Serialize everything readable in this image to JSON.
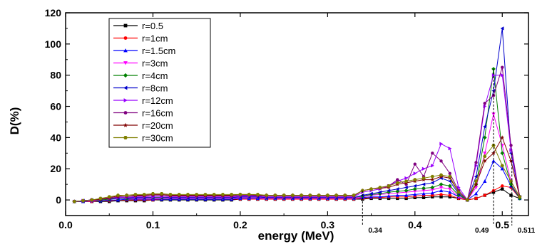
{
  "chart_data": {
    "type": "line",
    "xlabel": "energy (MeV)",
    "ylabel": "D(%)",
    "xlim": [
      0.0,
      0.53
    ],
    "ylim": [
      -10,
      120
    ],
    "xticks": [
      0.0,
      0.1,
      0.2,
      0.3,
      0.4,
      0.5
    ],
    "xtick_labels": [
      "0.0",
      "0.1",
      "0.2",
      "0.3",
      "0.4",
      "0.5"
    ],
    "yticks": [
      0,
      20,
      40,
      60,
      80,
      100,
      120
    ],
    "ytick_labels": [
      "0",
      "20",
      "40",
      "60",
      "80",
      "100",
      "120"
    ],
    "legend_position": "top-left",
    "annotations": [
      {
        "text": "0.34",
        "x": 0.34
      },
      {
        "text": "0.49",
        "x": 0.49
      },
      {
        "text": "0.511",
        "x": 0.511
      }
    ],
    "x": [
      0.01,
      0.02,
      0.03,
      0.04,
      0.05,
      0.06,
      0.07,
      0.08,
      0.09,
      0.1,
      0.11,
      0.12,
      0.13,
      0.14,
      0.15,
      0.16,
      0.17,
      0.18,
      0.19,
      0.2,
      0.21,
      0.22,
      0.23,
      0.24,
      0.25,
      0.26,
      0.27,
      0.28,
      0.29,
      0.3,
      0.31,
      0.32,
      0.33,
      0.34,
      0.35,
      0.36,
      0.37,
      0.38,
      0.39,
      0.4,
      0.41,
      0.42,
      0.43,
      0.44,
      0.45,
      0.46,
      0.47,
      0.48,
      0.49,
      0.5,
      0.51,
      0.52
    ],
    "series": [
      {
        "name": "r=0.5",
        "color": "#000000",
        "marker": "square",
        "values": [
          -1,
          -1,
          -1,
          -1,
          -1,
          -0.5,
          -0.5,
          -0.5,
          -0.5,
          0,
          0,
          0,
          0,
          0,
          0,
          0,
          0,
          0,
          0,
          0.5,
          0.5,
          0.5,
          0.5,
          0.5,
          0.5,
          0.5,
          0.5,
          0.5,
          0.5,
          0.5,
          0.5,
          0.5,
          0.5,
          0.5,
          1,
          1,
          1,
          1,
          1,
          1.5,
          1.5,
          2,
          2,
          2,
          1,
          0,
          1,
          3,
          5,
          7,
          3,
          1
        ]
      },
      {
        "name": "r=1cm",
        "color": "#ff0000",
        "marker": "circle",
        "values": [
          -1,
          -1,
          -1,
          -0.5,
          -0.5,
          0,
          0,
          0,
          0,
          0,
          0.5,
          0.5,
          0.5,
          0.5,
          0.5,
          0.5,
          0.5,
          0.5,
          0.5,
          0.5,
          0.5,
          0.5,
          0.5,
          0.5,
          0.5,
          0.5,
          0.5,
          0.5,
          0.5,
          0.5,
          0.5,
          0.5,
          0.5,
          1,
          1.5,
          1.5,
          2,
          2,
          2,
          2.5,
          3,
          3,
          3.5,
          3,
          1,
          0,
          1,
          3,
          6,
          9,
          8,
          1
        ]
      },
      {
        "name": "r=1.5cm",
        "color": "#0000ff",
        "marker": "triangle-up",
        "values": [
          -1,
          -1,
          -0.5,
          -0.5,
          0,
          0,
          0.5,
          0.5,
          0.5,
          0.5,
          0.5,
          0.5,
          0.5,
          0.5,
          0.5,
          0.5,
          0.5,
          0.5,
          0.5,
          1,
          1,
          1,
          1,
          1,
          1,
          1,
          1,
          1,
          1,
          1,
          1,
          1,
          1,
          1.5,
          2,
          2,
          2.5,
          3,
          3,
          3.5,
          4,
          4.5,
          6,
          5,
          2,
          0,
          4,
          12,
          25,
          20,
          9,
          1
        ]
      },
      {
        "name": "r=3cm",
        "color": "#ff00ff",
        "marker": "triangle-down",
        "values": [
          -1,
          -0.5,
          -0.5,
          0,
          0.5,
          1,
          1,
          1,
          1,
          1,
          1,
          1,
          1,
          1,
          1,
          1,
          1,
          1,
          1,
          1.5,
          1.5,
          1.5,
          1,
          1,
          1,
          1,
          1,
          1,
          1,
          1,
          1,
          1,
          1,
          2,
          3,
          3.5,
          4,
          4.5,
          5,
          5.5,
          6,
          6.5,
          8,
          7,
          2,
          0,
          8,
          30,
          55,
          35,
          12,
          1
        ]
      },
      {
        "name": "r=4cm",
        "color": "#008000",
        "marker": "diamond",
        "values": [
          -1,
          -0.5,
          0,
          0,
          0.5,
          1,
          1,
          1.5,
          1.5,
          1.5,
          1.5,
          1.5,
          1.5,
          1.5,
          1.5,
          1.5,
          1.5,
          1.5,
          1.5,
          2,
          2,
          2,
          1.5,
          1.5,
          1.5,
          1.5,
          1.5,
          1.5,
          1.5,
          1.5,
          1.5,
          1.5,
          1.5,
          2.5,
          3.5,
          4,
          5,
          5.5,
          6,
          7,
          7.5,
          8,
          10,
          9,
          3,
          0,
          10,
          40,
          84,
          30,
          10,
          1
        ]
      },
      {
        "name": "r=8cm",
        "color": "#0000cc",
        "marker": "triangle-left",
        "values": [
          -1,
          -0.5,
          0,
          0.5,
          1,
          1,
          1.5,
          1.5,
          1.5,
          2,
          2,
          1.5,
          1.5,
          1.5,
          1.5,
          1.5,
          1.5,
          1.5,
          1.5,
          2,
          2,
          2,
          1.5,
          1.5,
          1.5,
          1.5,
          1.5,
          1.5,
          1.5,
          1.5,
          1.5,
          1.5,
          1.5,
          3,
          4,
          5,
          6,
          7,
          8,
          9,
          10,
          11,
          14,
          12,
          4,
          0,
          15,
          47,
          70,
          110,
          30,
          2
        ]
      },
      {
        "name": "r=12cm",
        "color": "#9900ff",
        "marker": "triangle-right",
        "values": [
          -1,
          -0.5,
          0,
          0.5,
          1,
          1.5,
          1.5,
          2,
          2,
          2,
          2,
          2,
          2,
          2,
          2,
          2,
          2,
          2,
          2,
          2.5,
          2.5,
          2.5,
          2,
          2,
          2,
          2,
          2,
          2,
          2,
          2,
          2,
          2,
          2,
          5,
          6,
          7,
          9,
          12,
          14,
          17,
          20,
          22,
          36,
          33,
          8,
          0,
          22,
          60,
          80,
          80,
          32,
          2
        ]
      },
      {
        "name": "r=16cm",
        "color": "#800080",
        "marker": "circle",
        "values": [
          -1,
          -0.5,
          0,
          0.5,
          1,
          2,
          2,
          2.5,
          2.5,
          3,
          3,
          2.5,
          2.5,
          2.5,
          2.5,
          2.5,
          2.5,
          2.5,
          2.5,
          3,
          3,
          3,
          2.5,
          2.5,
          2.5,
          2.5,
          2.5,
          2.5,
          2.5,
          2.5,
          2.5,
          2.5,
          2.5,
          6,
          7,
          8,
          9,
          13,
          10,
          23,
          15,
          30,
          25,
          17,
          6,
          0,
          24,
          62,
          67,
          85,
          35,
          2
        ]
      },
      {
        "name": "r=20cm",
        "color": "#800000",
        "marker": "star",
        "values": [
          -1,
          -0.5,
          0,
          0.5,
          1.5,
          2.5,
          3,
          3,
          3,
          3.5,
          3.5,
          3,
          3,
          3,
          3,
          3,
          3,
          3,
          3,
          3.5,
          3.5,
          3,
          3,
          3,
          3,
          3,
          3,
          3,
          3,
          3,
          3,
          3,
          3,
          6,
          7,
          7.5,
          8,
          10,
          11,
          12,
          13,
          13,
          15,
          14,
          5,
          0,
          10,
          25,
          30,
          40,
          25,
          2
        ]
      },
      {
        "name": "r=30cm",
        "color": "#808000",
        "marker": "hexagon",
        "values": [
          -1,
          -0.5,
          0,
          1,
          2,
          3,
          3,
          3.5,
          3.5,
          4,
          4,
          3.5,
          3.5,
          3.5,
          3.5,
          3.5,
          3.5,
          3.5,
          3.5,
          3.5,
          3.5,
          3.5,
          3,
          3,
          3,
          3,
          3,
          3,
          3,
          3,
          3,
          3,
          3,
          6,
          7,
          8,
          9,
          11,
          12,
          13,
          14,
          15,
          16,
          15,
          5,
          0,
          12,
          28,
          35,
          22,
          12,
          2
        ]
      }
    ]
  }
}
